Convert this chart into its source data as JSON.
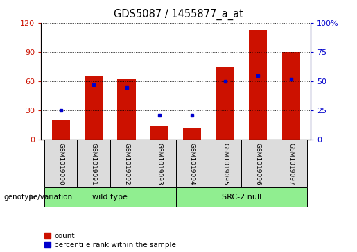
{
  "title": "GDS5087 / 1455877_a_at",
  "samples": [
    "GSM1019090",
    "GSM1019091",
    "GSM1019092",
    "GSM1019093",
    "GSM1019094",
    "GSM1019095",
    "GSM1019096",
    "GSM1019097"
  ],
  "counts": [
    20,
    65,
    62,
    14,
    12,
    75,
    113,
    90
  ],
  "percentiles": [
    25,
    47,
    45,
    21,
    21,
    50,
    55,
    52
  ],
  "groups": [
    {
      "label": "wild type",
      "span": [
        0,
        3
      ],
      "color": "#90EE90"
    },
    {
      "label": "SRC-2 null",
      "span": [
        4,
        7
      ],
      "color": "#90EE90"
    }
  ],
  "bar_color": "#CC1100",
  "dot_color": "#0000CC",
  "left_yticks": [
    0,
    30,
    60,
    90,
    120
  ],
  "right_yticks": [
    0,
    25,
    50,
    75,
    100
  ],
  "right_yticklabels": [
    "0",
    "25",
    "50",
    "75",
    "100%"
  ],
  "left_ylim": [
    0,
    120
  ],
  "right_ylim": [
    0,
    100
  ],
  "cell_bg": "#DCDCDC",
  "legend_count_label": "count",
  "legend_percentile_label": "percentile rank within the sample",
  "genotype_label": "genotype/variation"
}
